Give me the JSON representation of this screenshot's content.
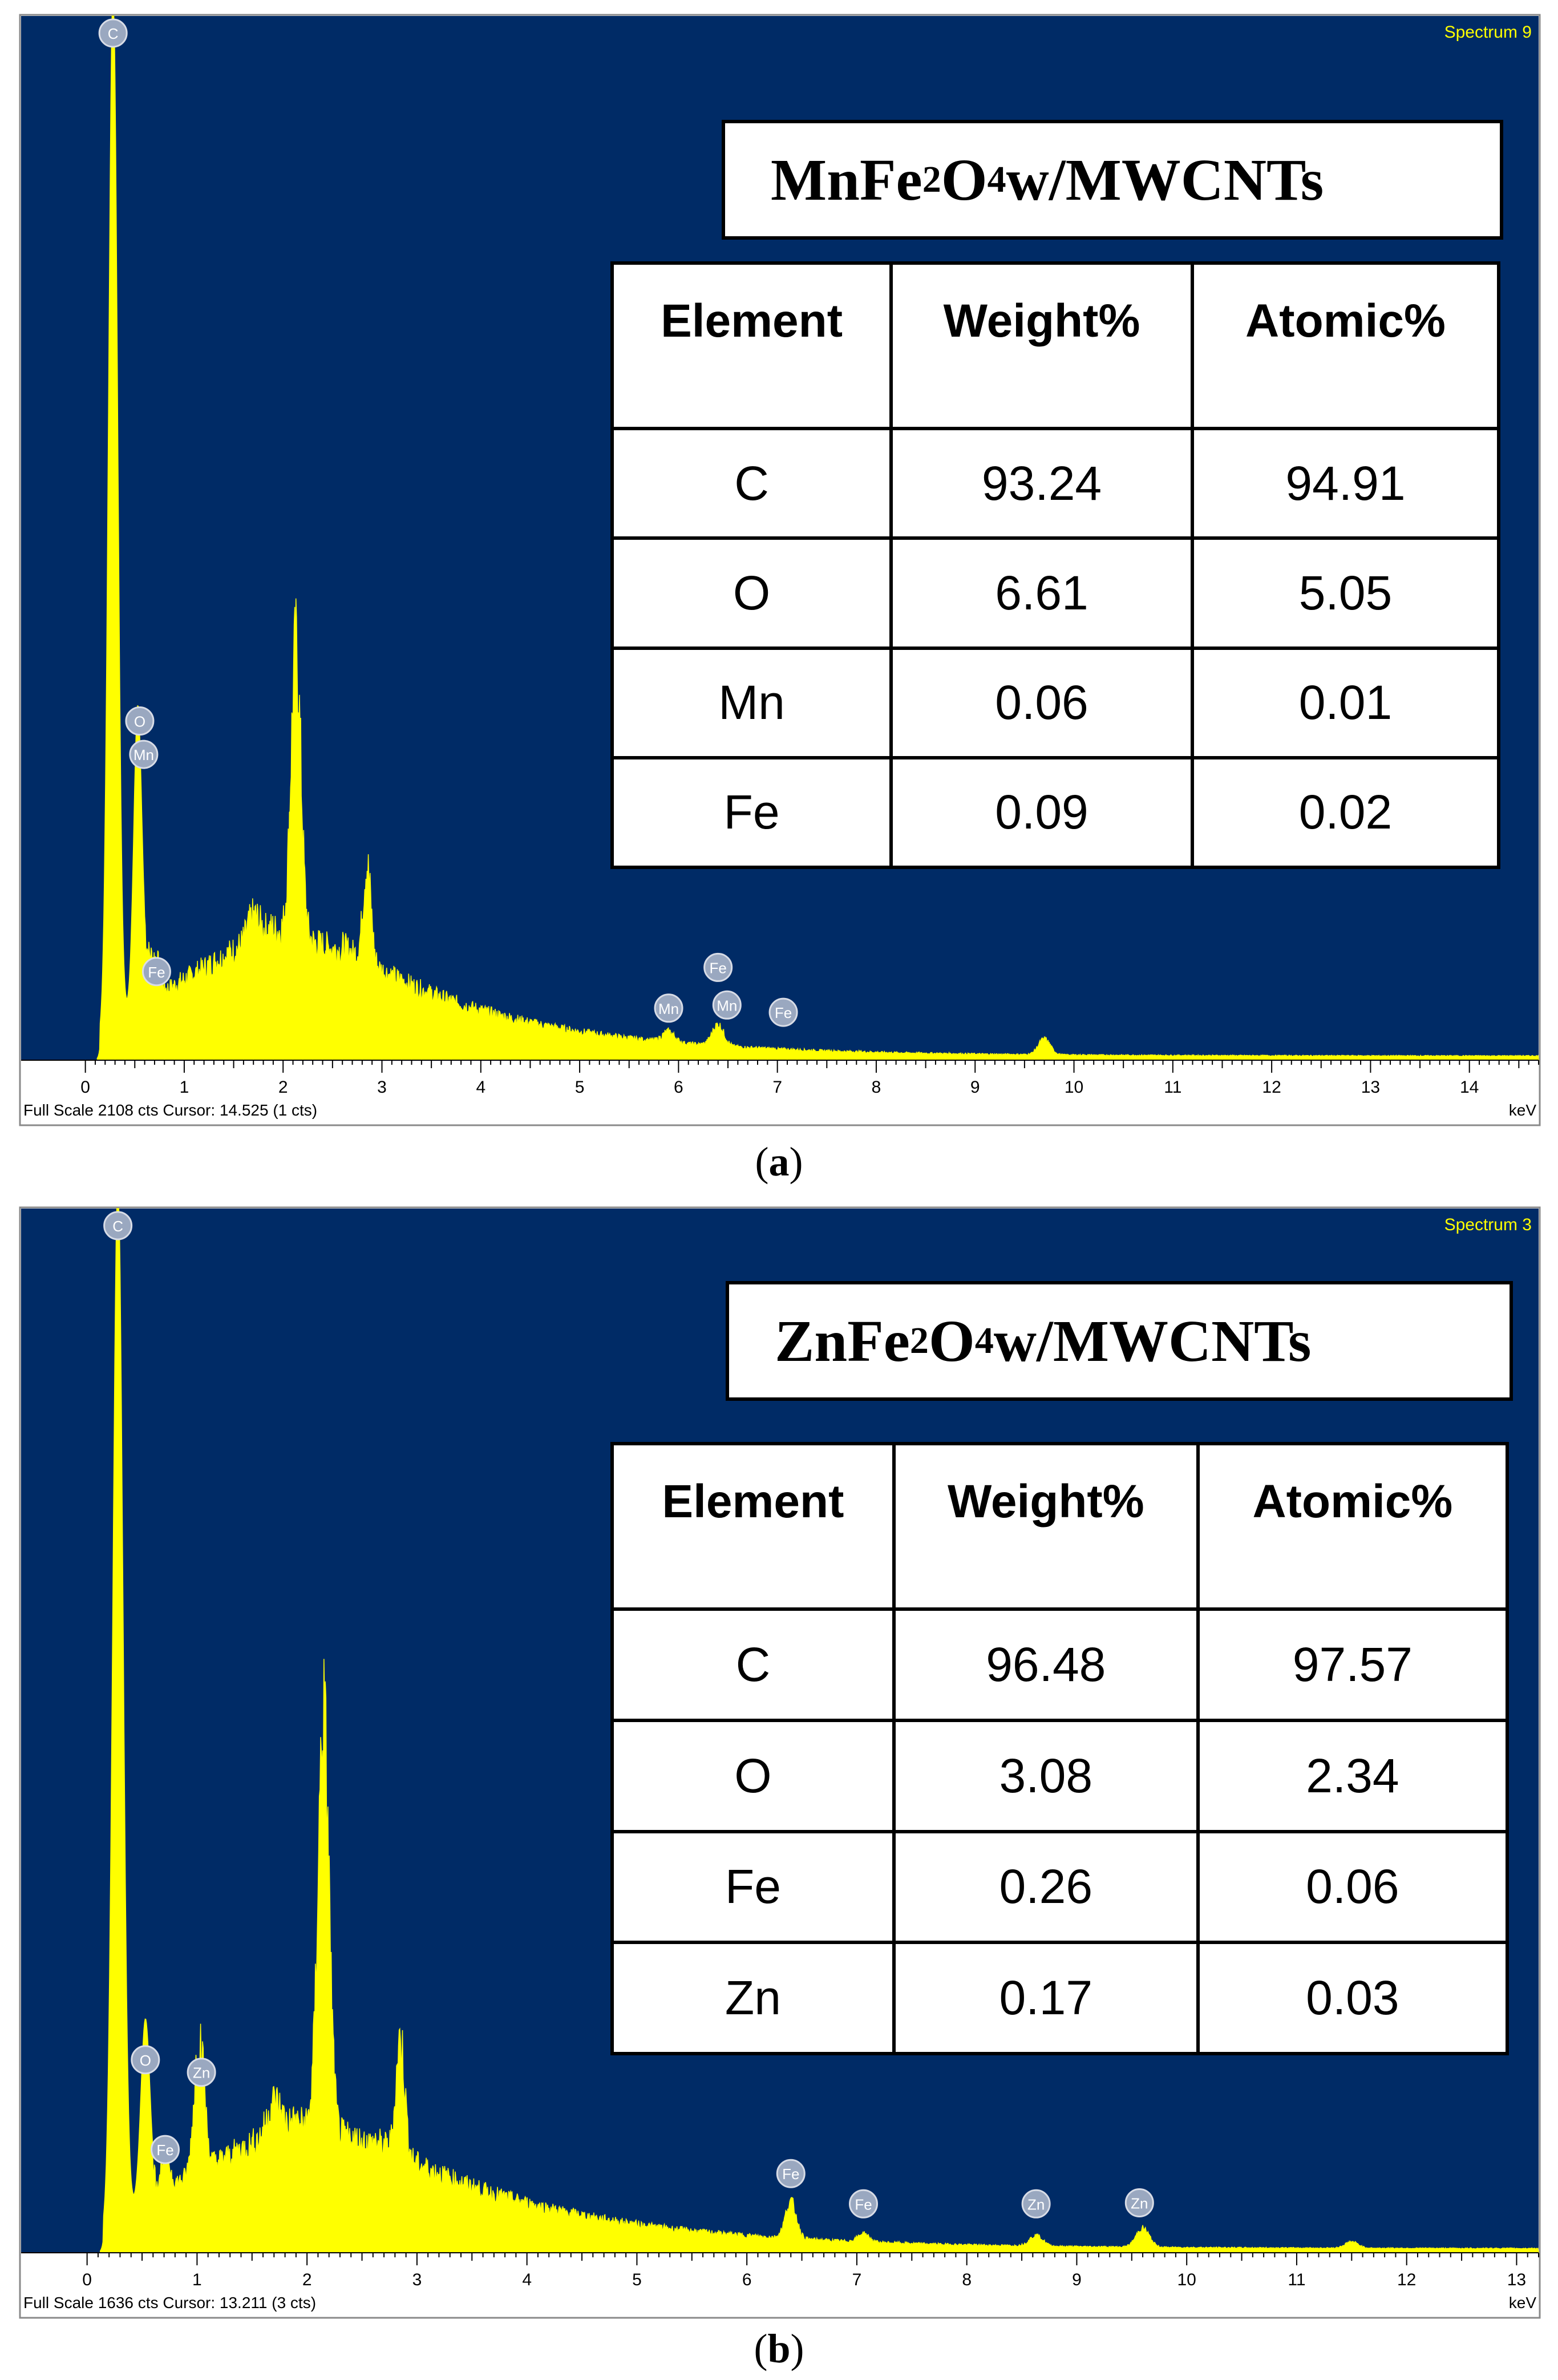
{
  "chart_data": [
    {
      "type": "area",
      "panel_label": "a",
      "spectrum_label": "Spectrum 9",
      "footer_left": "Full Scale 2108 cts Cursor: 14.525  (1 cts)",
      "xunit": "keV",
      "xlim": [
        -0.65,
        14.7
      ],
      "x_ticks": [
        "0",
        "1",
        "2",
        "3",
        "4",
        "5",
        "6",
        "7",
        "8",
        "9",
        "10",
        "11",
        "12",
        "13",
        "14"
      ],
      "full_scale_cts": 2108,
      "colors": {
        "background": "#002b66",
        "trace": "#ffff00",
        "spectrum_label": "#ffff00"
      },
      "peaks": [
        {
          "x": 0.28,
          "y": 1.0,
          "w": 0.045
        },
        {
          "x": 0.53,
          "y": 0.285,
          "w": 0.04
        },
        {
          "x": 0.64,
          "y": 0.035,
          "w": 0.04
        },
        {
          "x": 0.72,
          "y": 0.03,
          "w": 0.04
        },
        {
          "x": 1.7,
          "y": 0.022,
          "w": 0.06
        },
        {
          "x": 2.13,
          "y": 0.275,
          "w": 0.05
        },
        {
          "x": 2.85,
          "y": 0.092,
          "w": 0.04
        },
        {
          "x": 5.9,
          "y": 0.01,
          "w": 0.06
        },
        {
          "x": 6.4,
          "y": 0.02,
          "w": 0.06
        },
        {
          "x": 9.7,
          "y": 0.015,
          "w": 0.06
        }
      ],
      "element_labels": [
        {
          "symbol": "C",
          "x": 0.28,
          "y": 1.0
        },
        {
          "symbol": "O",
          "x": 0.55,
          "y": 0.315
        },
        {
          "symbol": "Mn",
          "x": 0.59,
          "y": 0.283
        },
        {
          "symbol": "Fe",
          "x": 0.72,
          "y": 0.075
        },
        {
          "symbol": "Mn",
          "x": 5.9,
          "y": 0.04
        },
        {
          "symbol": "Fe",
          "x": 6.4,
          "y": 0.079
        },
        {
          "symbol": "Mn",
          "x": 6.49,
          "y": 0.043
        },
        {
          "symbol": "Fe",
          "x": 7.06,
          "y": 0.036
        }
      ],
      "title_main": "MnFe",
      "title_sub1": "2",
      "title_mid": "O",
      "title_sub2": "4",
      "title_tail": " w/MWCNTs",
      "table": {
        "headers": [
          "Element",
          "Weight%",
          "Atomic%"
        ],
        "rows": [
          [
            "C",
            "93.24",
            "94.91"
          ],
          [
            "O",
            "6.61",
            "5.05"
          ],
          [
            "Mn",
            "0.06",
            "0.01"
          ],
          [
            "Fe",
            "0.09",
            "0.02"
          ]
        ]
      }
    },
    {
      "type": "area",
      "panel_label": "b",
      "spectrum_label": "Spectrum 3",
      "footer_left": "Full Scale 1636 cts Cursor: 13.211  (3 cts)",
      "xunit": "keV",
      "xlim": [
        -0.6,
        13.2
      ],
      "x_ticks": [
        "0",
        "1",
        "2",
        "3",
        "4",
        "5",
        "6",
        "7",
        "8",
        "9",
        "10",
        "11",
        "12",
        "13"
      ],
      "full_scale_cts": 1636,
      "colors": {
        "background": "#002b66",
        "trace": "#ffff00",
        "spectrum_label": "#ffff00"
      },
      "peaks": [
        {
          "x": 0.28,
          "y": 1.0,
          "w": 0.045
        },
        {
          "x": 0.53,
          "y": 0.17,
          "w": 0.04
        },
        {
          "x": 0.71,
          "y": 0.035,
          "w": 0.04
        },
        {
          "x": 1.02,
          "y": 0.13,
          "w": 0.045
        },
        {
          "x": 1.7,
          "y": 0.03,
          "w": 0.06
        },
        {
          "x": 2.15,
          "y": 0.395,
          "w": 0.05
        },
        {
          "x": 2.85,
          "y": 0.11,
          "w": 0.04
        },
        {
          "x": 6.4,
          "y": 0.035,
          "w": 0.05
        },
        {
          "x": 7.06,
          "y": 0.008,
          "w": 0.05
        },
        {
          "x": 8.63,
          "y": 0.01,
          "w": 0.06
        },
        {
          "x": 9.6,
          "y": 0.018,
          "w": 0.06
        },
        {
          "x": 11.5,
          "y": 0.006,
          "w": 0.06
        }
      ],
      "element_labels": [
        {
          "symbol": "C",
          "x": 0.28,
          "y": 1.0
        },
        {
          "symbol": "O",
          "x": 0.53,
          "y": 0.175
        },
        {
          "symbol": "Zn",
          "x": 1.04,
          "y": 0.163
        },
        {
          "symbol": "Fe",
          "x": 0.71,
          "y": 0.089
        },
        {
          "symbol": "Fe",
          "x": 6.4,
          "y": 0.066
        },
        {
          "symbol": "Fe",
          "x": 7.06,
          "y": 0.037
        },
        {
          "symbol": "Zn",
          "x": 8.63,
          "y": 0.037
        },
        {
          "symbol": "Zn",
          "x": 9.57,
          "y": 0.038
        }
      ],
      "title_main": "ZnFe",
      "title_sub1": "2",
      "title_mid": "O",
      "title_sub2": "4",
      "title_tail": " w/MWCNTs",
      "table": {
        "headers": [
          "Element",
          "Weight%",
          "Atomic%"
        ],
        "rows": [
          [
            "C",
            "96.48",
            "97.57"
          ],
          [
            "O",
            "3.08",
            "2.34"
          ],
          [
            "Fe",
            "0.26",
            "0.06"
          ],
          [
            "Zn",
            "0.17",
            "0.03"
          ]
        ]
      }
    }
  ]
}
